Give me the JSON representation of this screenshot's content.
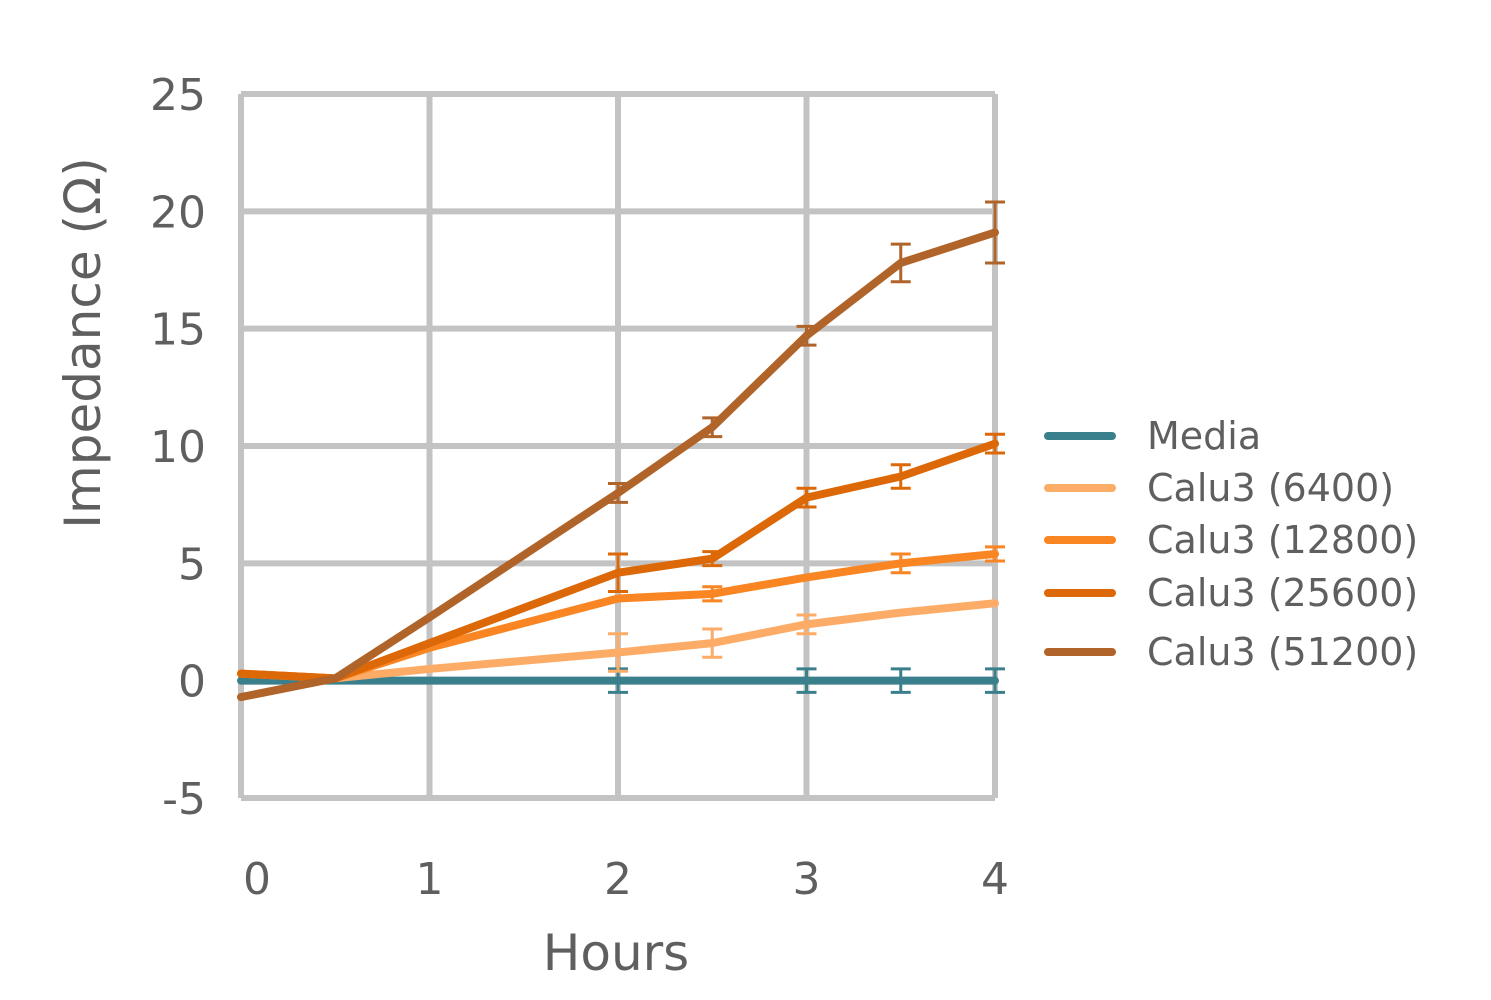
{
  "chart_data": {
    "type": "line",
    "title": "",
    "xlabel": "Hours",
    "ylabel": "Impedance (Ω)",
    "xlim": [
      0,
      4
    ],
    "ylim": [
      -5,
      25
    ],
    "x_ticks": [
      "0",
      "1",
      "2",
      "3",
      "4"
    ],
    "y_ticks": [
      "25",
      "20",
      "15",
      "10",
      "5",
      "0",
      "-5"
    ],
    "grid": true,
    "legend_position": "right",
    "series": [
      {
        "name": "Media",
        "color": "#3a7f8c",
        "points": [
          [
            0,
            0
          ],
          [
            0.5,
            0
          ],
          [
            1,
            0
          ],
          [
            2,
            0
          ],
          [
            2.5,
            0
          ],
          [
            3,
            0
          ],
          [
            3.5,
            0
          ],
          [
            4,
            0
          ]
        ],
        "errors": [
          0,
          0,
          0,
          0.5,
          0,
          0.5,
          0.5,
          0.5
        ]
      },
      {
        "name": "Calu3 (6400)",
        "color": "#fdac68",
        "points": [
          [
            0,
            0.3
          ],
          [
            0.5,
            0.1
          ],
          [
            1,
            0.5
          ],
          [
            2,
            1.2
          ],
          [
            2.5,
            1.6
          ],
          [
            3,
            2.4
          ],
          [
            3.5,
            2.9
          ],
          [
            4,
            3.3
          ]
        ],
        "errors": [
          0,
          0,
          0,
          0.8,
          0.6,
          0.4,
          0,
          0
        ]
      },
      {
        "name": "Calu3 (12800)",
        "color": "#f98523",
        "points": [
          [
            0,
            0.3
          ],
          [
            0.5,
            0.1
          ],
          [
            1,
            1.4
          ],
          [
            2,
            3.5
          ],
          [
            2.5,
            3.7
          ],
          [
            3,
            4.4
          ],
          [
            3.5,
            5.0
          ],
          [
            4,
            5.4
          ]
        ],
        "errors": [
          0,
          0,
          0,
          0,
          0.3,
          0,
          0.4,
          0.3
        ]
      },
      {
        "name": "Calu3 (25600)",
        "color": "#dd6808",
        "points": [
          [
            0,
            0.3
          ],
          [
            0.5,
            0.1
          ],
          [
            1,
            1.6
          ],
          [
            2,
            4.6
          ],
          [
            2.5,
            5.2
          ],
          [
            3,
            7.8
          ],
          [
            3.5,
            8.7
          ],
          [
            4,
            10.1
          ]
        ],
        "errors": [
          0,
          0,
          0,
          0.8,
          0.3,
          0.4,
          0.5,
          0.4
        ]
      },
      {
        "name": "Calu3 (51200)",
        "color": "#b0642a",
        "points": [
          [
            0,
            -0.7
          ],
          [
            0.5,
            0.1
          ],
          [
            1,
            2.7
          ],
          [
            2,
            8.0
          ],
          [
            2.5,
            10.8
          ],
          [
            3,
            14.7
          ],
          [
            3.5,
            17.8
          ],
          [
            4,
            19.1
          ]
        ],
        "errors": [
          0,
          0,
          0,
          0.4,
          0.4,
          0.4,
          0.8,
          1.3
        ]
      }
    ]
  }
}
